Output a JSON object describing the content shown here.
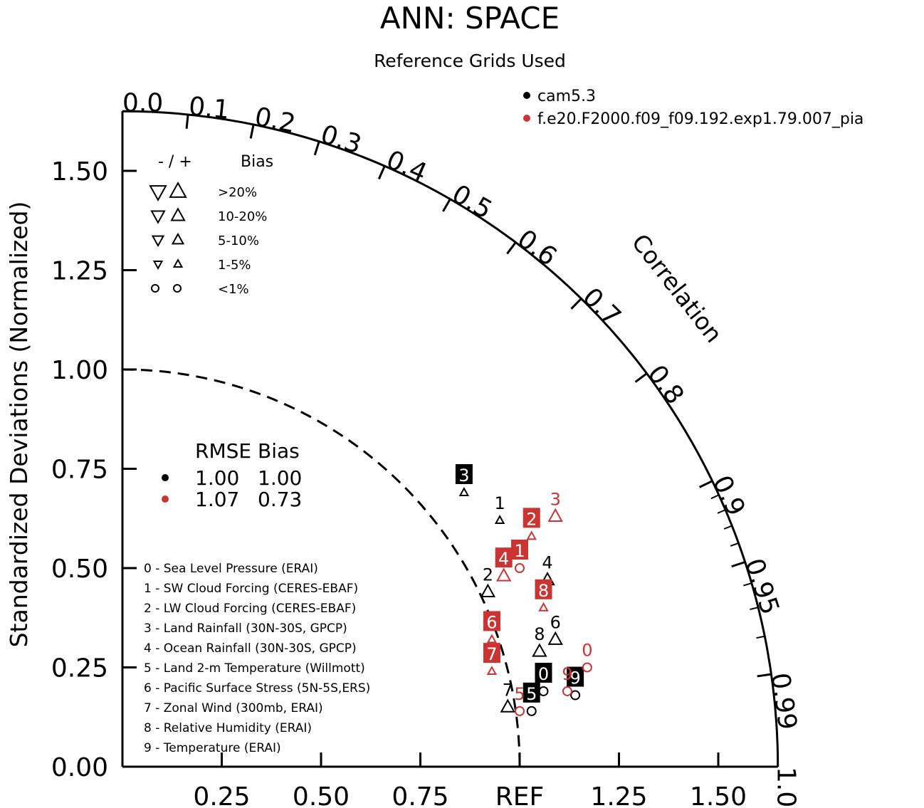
{
  "chart_data": {
    "type": "scatter",
    "title": "ANN: SPACE",
    "subtitle": "Reference Grids Used",
    "ylabel": "Standardized Deviations (Normalized)",
    "arc_label": "Correlation",
    "ref_label": "REF",
    "std_range": [
      0,
      1.65
    ],
    "left_ticks": [
      "0.00",
      "0.25",
      "0.50",
      "0.75",
      "1.00",
      "1.25",
      "1.50"
    ],
    "bottom_ticks": [
      "0.25",
      "0.50",
      "0.75",
      "1.25",
      "1.50"
    ],
    "correlation_ticks": [
      "0.0",
      "0.1",
      "0.2",
      "0.3",
      "0.4",
      "0.5",
      "0.6",
      "0.7",
      "0.8",
      "0.9",
      "0.95",
      "0.99",
      "1.0"
    ],
    "reference_arc_std": 1.0,
    "legend": {
      "cases": [
        {
          "name": "cam5.3",
          "color": "#000000"
        },
        {
          "name": "f.e20.F2000.f09_f09.192.exp1.79.007_pia",
          "color": "#cc3333"
        }
      ],
      "bias_header": [
        "- / +",
        "Bias"
      ],
      "bias_rows": [
        ">20%",
        "10-20%",
        "5-10%",
        "1-5%",
        "<1%"
      ]
    },
    "summary": {
      "header": "RMSE Bias",
      "rows": [
        {
          "color": "#000000",
          "rmse": "1.00",
          "bias": "1.00"
        },
        {
          "color": "#cc3333",
          "rmse": "1.07",
          "bias": "0.73"
        }
      ]
    },
    "variables": [
      "0 - Sea Level Pressure (ERAI)",
      "1 - SW Cloud Forcing (CERES-EBAF)",
      "2 - LW Cloud Forcing (CERES-EBAF)",
      "3 - Land Rainfall (30N-30S, GPCP)",
      "4 - Ocean Rainfall (30N-30S, GPCP)",
      "5 - Land 2-m Temperature (Willmott)",
      "6 - Pacific Surface Stress (5N-5S,ERS)",
      "7 - Zonal Wind (300mb, ERAI)",
      "8 - Relative Humidity (ERAI)",
      "9 - Temperature (ERAI)"
    ],
    "series": [
      {
        "name": "cam5.3",
        "color": "#000000",
        "points": [
          {
            "id": "0",
            "x": 1.06,
            "y": 0.19,
            "marker": "circle",
            "boxed": true
          },
          {
            "id": "1",
            "x": 0.95,
            "y": 0.62,
            "marker": "triangle-up-small",
            "boxed": false
          },
          {
            "id": "2",
            "x": 0.92,
            "y": 0.44,
            "marker": "triangle-up",
            "boxed": false
          },
          {
            "id": "3",
            "x": 0.86,
            "y": 0.69,
            "marker": "triangle-up-small",
            "boxed": true
          },
          {
            "id": "4",
            "x": 1.07,
            "y": 0.47,
            "marker": "triangle-up",
            "boxed": false
          },
          {
            "id": "5",
            "x": 1.03,
            "y": 0.14,
            "marker": "circle",
            "boxed": true
          },
          {
            "id": "6",
            "x": 1.09,
            "y": 0.32,
            "marker": "triangle-up",
            "boxed": false
          },
          {
            "id": "7",
            "x": 0.97,
            "y": 0.15,
            "marker": "triangle-up",
            "boxed": false
          },
          {
            "id": "8",
            "x": 1.05,
            "y": 0.29,
            "marker": "triangle-up",
            "boxed": false
          },
          {
            "id": "9",
            "x": 1.14,
            "y": 0.18,
            "marker": "circle",
            "boxed": true
          }
        ]
      },
      {
        "name": "f.e20.F2000.f09_f09.192.exp1.79.007_pia",
        "color": "#cc3333",
        "points": [
          {
            "id": "0",
            "x": 1.17,
            "y": 0.25,
            "marker": "circle",
            "boxed": false
          },
          {
            "id": "1",
            "x": 1.0,
            "y": 0.5,
            "marker": "circle",
            "boxed": true
          },
          {
            "id": "2",
            "x": 1.03,
            "y": 0.58,
            "marker": "triangle-up-small",
            "boxed": true
          },
          {
            "id": "3",
            "x": 1.09,
            "y": 0.63,
            "marker": "triangle-up",
            "boxed": false
          },
          {
            "id": "4",
            "x": 0.96,
            "y": 0.48,
            "marker": "triangle-up",
            "boxed": true
          },
          {
            "id": "5",
            "x": 1.0,
            "y": 0.14,
            "marker": "circle",
            "boxed": false
          },
          {
            "id": "6",
            "x": 0.93,
            "y": 0.32,
            "marker": "triangle-up-small",
            "boxed": true
          },
          {
            "id": "7",
            "x": 0.93,
            "y": 0.24,
            "marker": "triangle-up-small",
            "boxed": true
          },
          {
            "id": "8",
            "x": 1.06,
            "y": 0.4,
            "marker": "triangle-up-small",
            "boxed": true
          },
          {
            "id": "9",
            "x": 1.12,
            "y": 0.19,
            "marker": "circle",
            "boxed": false
          }
        ]
      }
    ]
  }
}
